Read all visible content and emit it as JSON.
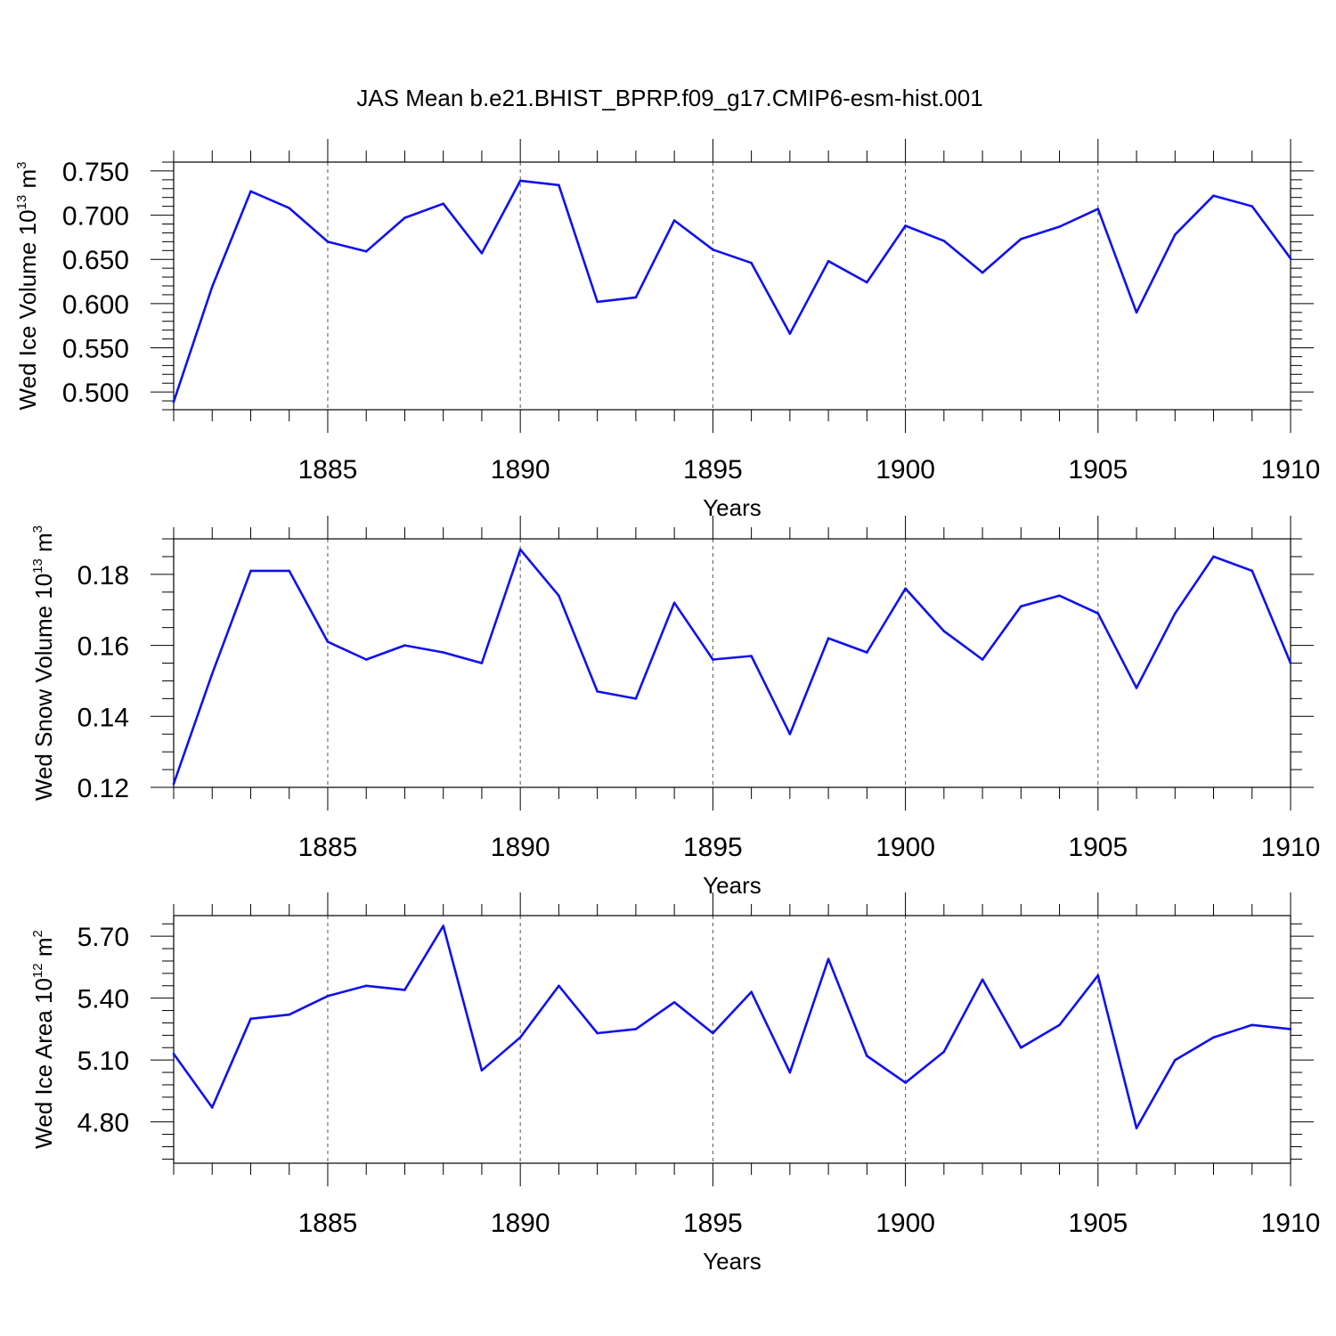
{
  "figure_title": "JAS Mean b.e21.BHIST_BPRP.f09_g17.CMIP6-esm-hist.001",
  "line_color": "#1010f0",
  "chart_data": [
    {
      "type": "line",
      "title": "JAS Mean b.e21.BHIST_BPRP.f09_g17.CMIP6-esm-hist.001",
      "ylabel": "Wed Ice Volume 10¹³ m³",
      "ylabel_base": "Wed Ice Volume 10",
      "ylabel_exp": "13",
      "ylabel_unit": "m",
      "ylabel_unit_exp": "3",
      "xlabel": "Years",
      "xlim": [
        1881,
        1910
      ],
      "ylim": [
        0.48,
        0.76
      ],
      "yticks": [
        "0.500",
        "0.550",
        "0.600",
        "0.650",
        "0.700",
        "0.750"
      ],
      "xticks": [
        "1885",
        "1890",
        "1895",
        "1900",
        "1905",
        "1910"
      ],
      "x": [
        1881,
        1882,
        1883,
        1884,
        1885,
        1886,
        1887,
        1888,
        1889,
        1890,
        1891,
        1892,
        1893,
        1894,
        1895,
        1896,
        1897,
        1898,
        1899,
        1900,
        1901,
        1902,
        1903,
        1904,
        1905,
        1906,
        1907,
        1908,
        1909,
        1910
      ],
      "y": [
        0.489,
        0.619,
        0.727,
        0.708,
        0.67,
        0.659,
        0.697,
        0.713,
        0.657,
        0.739,
        0.734,
        0.602,
        0.607,
        0.694,
        0.661,
        0.646,
        0.566,
        0.648,
        0.624,
        0.688,
        0.671,
        0.635,
        0.673,
        0.687,
        0.707,
        0.59,
        0.678,
        0.722,
        0.71,
        0.651
      ]
    },
    {
      "type": "line",
      "ylabel": "Wed Snow Volume 10¹³ m³",
      "ylabel_base": "Wed Snow Volume 10",
      "ylabel_exp": "13",
      "ylabel_unit": "m",
      "ylabel_unit_exp": "3",
      "xlabel": "Years",
      "xlim": [
        1881,
        1910
      ],
      "ylim": [
        0.12,
        0.19
      ],
      "yticks": [
        "0.12",
        "0.14",
        "0.16",
        "0.18"
      ],
      "xticks": [
        "1885",
        "1890",
        "1895",
        "1900",
        "1905",
        "1910"
      ],
      "x": [
        1881,
        1882,
        1883,
        1884,
        1885,
        1886,
        1887,
        1888,
        1889,
        1890,
        1891,
        1892,
        1893,
        1894,
        1895,
        1896,
        1897,
        1898,
        1899,
        1900,
        1901,
        1902,
        1903,
        1904,
        1905,
        1906,
        1907,
        1908,
        1909,
        1910
      ],
      "y": [
        0.121,
        0.152,
        0.181,
        0.181,
        0.161,
        0.156,
        0.16,
        0.158,
        0.155,
        0.187,
        0.174,
        0.147,
        0.145,
        0.172,
        0.156,
        0.157,
        0.135,
        0.162,
        0.158,
        0.176,
        0.164,
        0.156,
        0.171,
        0.174,
        0.169,
        0.148,
        0.169,
        0.185,
        0.181,
        0.155
      ]
    },
    {
      "type": "line",
      "ylabel": "Wed Ice Area 10¹² m²",
      "ylabel_base": "Wed Ice Area 10",
      "ylabel_exp": "12",
      "ylabel_unit": "m",
      "ylabel_unit_exp": "2",
      "xlabel": "Years",
      "xlim": [
        1881,
        1910
      ],
      "ylim": [
        4.6,
        5.8
      ],
      "yticks": [
        "4.80",
        "5.10",
        "5.40",
        "5.70"
      ],
      "xticks": [
        "1885",
        "1890",
        "1895",
        "1900",
        "1905",
        "1910"
      ],
      "x": [
        1881,
        1882,
        1883,
        1884,
        1885,
        1886,
        1887,
        1888,
        1889,
        1890,
        1891,
        1892,
        1893,
        1894,
        1895,
        1896,
        1897,
        1898,
        1899,
        1900,
        1901,
        1902,
        1903,
        1904,
        1905,
        1906,
        1907,
        1908,
        1909,
        1910
      ],
      "y": [
        5.13,
        4.87,
        5.3,
        5.32,
        5.41,
        5.46,
        5.44,
        5.75,
        5.05,
        5.21,
        5.46,
        5.23,
        5.25,
        5.38,
        5.23,
        5.43,
        5.04,
        5.59,
        5.12,
        4.99,
        5.14,
        5.49,
        5.16,
        5.27,
        5.51,
        4.77,
        5.1,
        5.21,
        5.27,
        5.25
      ]
    }
  ]
}
